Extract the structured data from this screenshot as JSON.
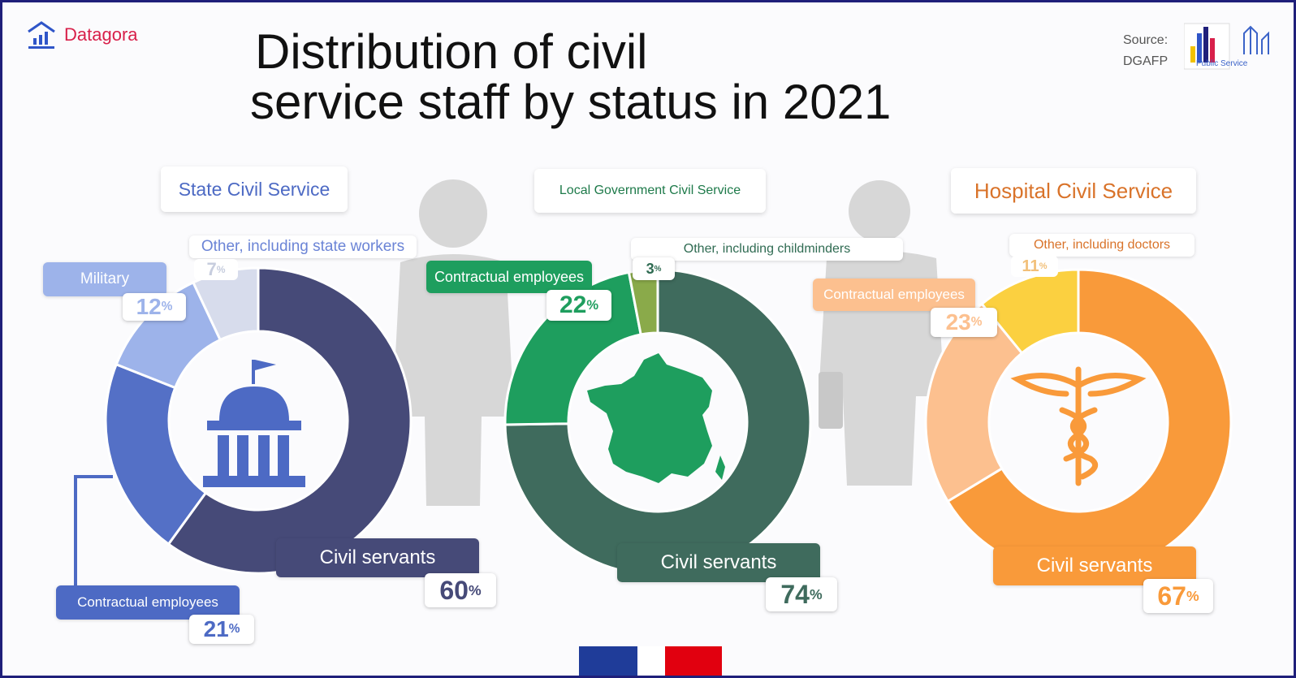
{
  "brand": {
    "name": "Datagora"
  },
  "title": {
    "line1": "Distribution of civil",
    "line2": "service staff by status in 2021"
  },
  "source": {
    "label": "Source:",
    "name": "DGAFP",
    "logo_text": "Public Service"
  },
  "colors": {
    "frame": "#1f1f7a",
    "brand": "#d8204a"
  },
  "chart_data": [
    {
      "type": "pie",
      "title": "State Civil Service",
      "slices": [
        {
          "label": "Civil servants",
          "value": 60,
          "color": "#464a78"
        },
        {
          "label": "Contractual employees",
          "value": 21,
          "color": "#5470c6"
        },
        {
          "label": "Military",
          "value": 12,
          "color": "#9db3ea"
        },
        {
          "label": "Other, including state workers",
          "value": 7,
          "color": "#d7dcec"
        }
      ],
      "icon": "government-building-icon"
    },
    {
      "type": "pie",
      "title": "Local Government Civil Service",
      "slices": [
        {
          "label": "Civil servants",
          "value": 74,
          "color": "#3f6b5d"
        },
        {
          "label": "Contractual employees",
          "value": 22,
          "color": "#1e9e5e"
        },
        {
          "label": "Other, including childminders",
          "value": 3,
          "color": "#8aaa4a"
        }
      ],
      "icon": "france-map-icon"
    },
    {
      "type": "pie",
      "title": "Hospital Civil Service",
      "slices": [
        {
          "label": "Civil servants",
          "value": 67,
          "color": "#f99a3a"
        },
        {
          "label": "Contractual employees",
          "value": 23,
          "color": "#fcc08f"
        },
        {
          "label": "Other, including doctors",
          "value": 11,
          "color": "#fbd040"
        }
      ],
      "icon": "caduceus-icon"
    }
  ],
  "percent_sign": "%"
}
